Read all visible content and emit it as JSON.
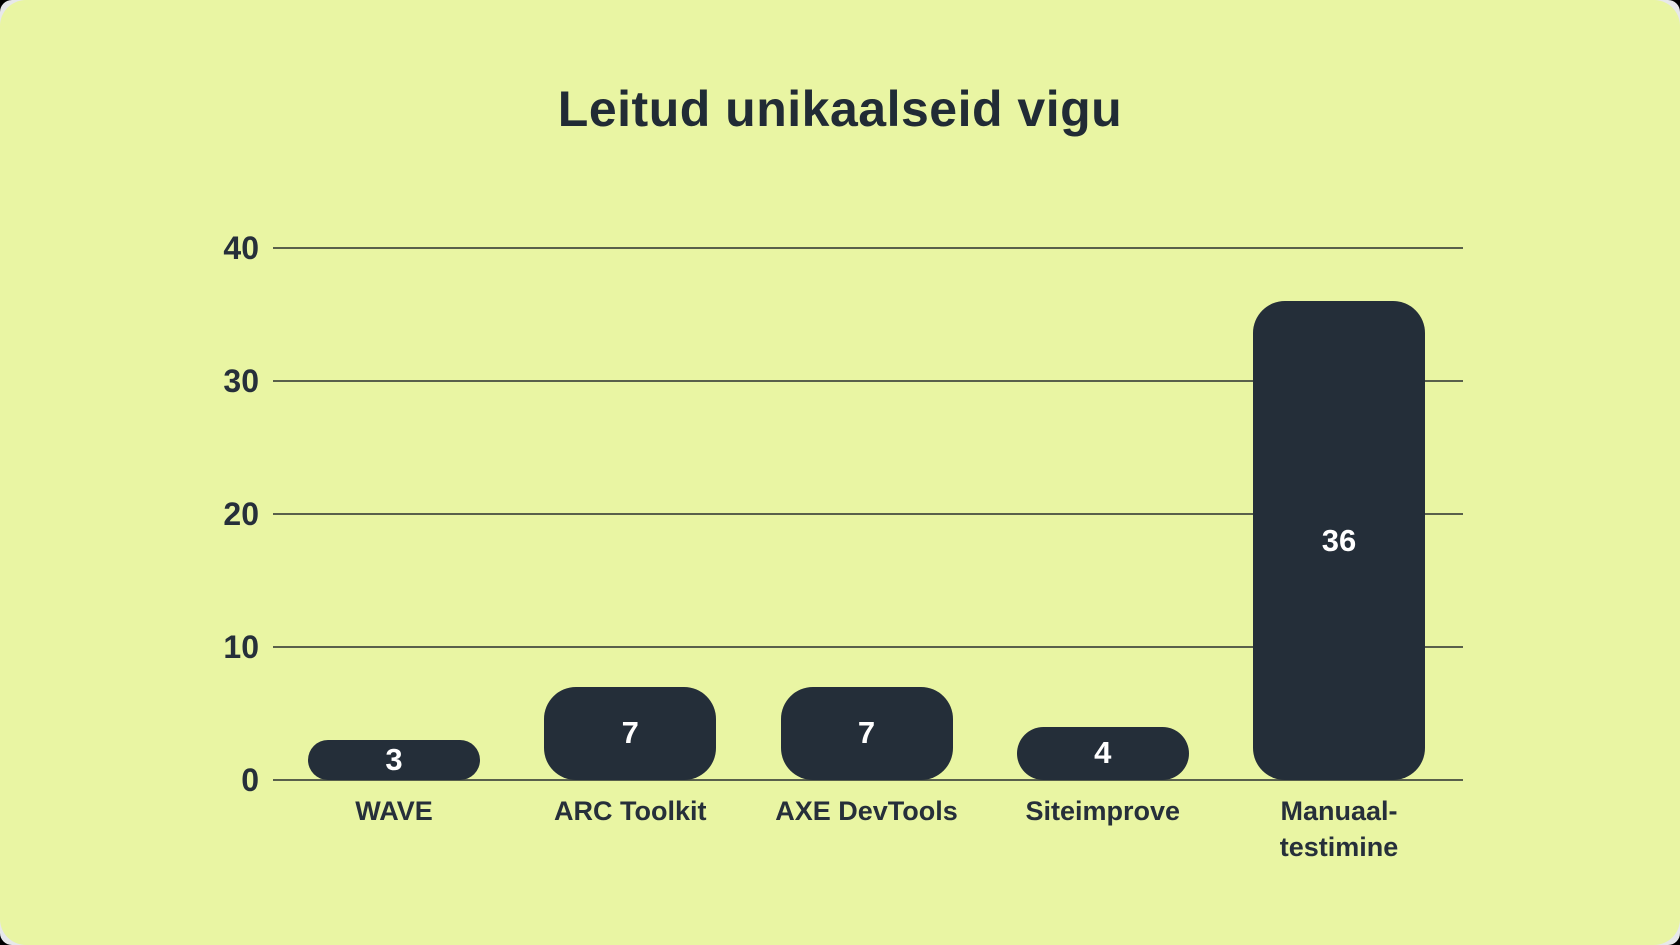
{
  "chart_data": {
    "type": "bar",
    "title": "Leitud unikaalseid vigu",
    "categories": [
      "WAVE",
      "ARC Toolkit",
      "AXE DevTools",
      "Siteimprove",
      "Manuaal-\ntestimine"
    ],
    "values": [
      3,
      7,
      7,
      4,
      36
    ],
    "value_labels": [
      "3",
      "7",
      "7",
      "4",
      "36"
    ],
    "xlabel": "",
    "ylabel": "",
    "ylim": [
      0,
      40
    ],
    "yticks": [
      0,
      10,
      20,
      30,
      40
    ],
    "grid": "horizontal",
    "legend": "none",
    "colors": {
      "background": "#e9f5a3",
      "bar": "#242e39",
      "gridline": "#59604b",
      "axis_text": "#262f3a",
      "title_text": "#212b35",
      "value_label_text": "#ffffff"
    }
  }
}
